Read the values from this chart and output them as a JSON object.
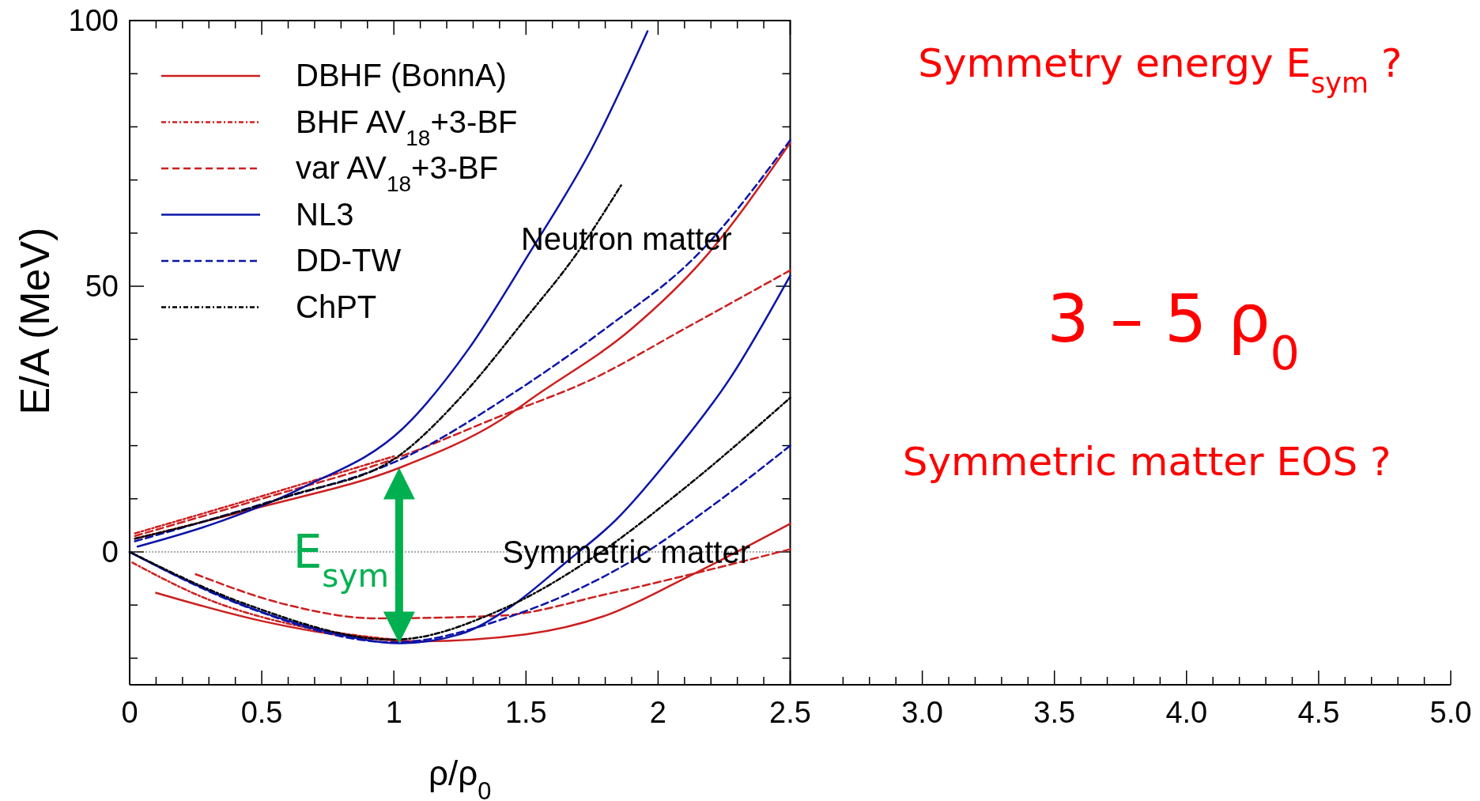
{
  "chart_data": {
    "type": "line",
    "xlabel": "ρ/ρ$_{0}$",
    "ylabel": "E/A  (MeV)",
    "xlim": [
      0,
      5
    ],
    "ylim": [
      -25,
      100
    ],
    "xticks": [
      0,
      {
        "value": 0.1,
        "label": null
      },
      {
        "value": 0.2,
        "label": null
      },
      {
        "value": 0.3,
        "label": null
      },
      {
        "value": 0.4,
        "label": null
      },
      0.5,
      {
        "value": 0.6,
        "label": null
      },
      {
        "value": 0.7,
        "label": null
      },
      {
        "value": 0.8,
        "label": null
      },
      {
        "value": 0.9,
        "label": null
      },
      1,
      {
        "value": 1.1,
        "label": null
      },
      {
        "value": 1.2,
        "label": null
      },
      {
        "value": 1.3,
        "label": null
      },
      {
        "value": 1.4,
        "label": null
      },
      1.5,
      {
        "value": 1.6,
        "label": null
      },
      {
        "value": 1.7,
        "label": null
      },
      {
        "value": 1.8,
        "label": null
      },
      {
        "value": 1.9,
        "label": null
      },
      2,
      {
        "value": 2.1,
        "label": null
      },
      {
        "value": 2.2,
        "label": null
      },
      {
        "value": 2.3,
        "label": null
      },
      {
        "value": 2.4,
        "label": null
      },
      2.5,
      {
        "value": 2.7,
        "label": null
      },
      {
        "value": 2.8,
        "label": null
      },
      {
        "value": 2.9,
        "label": null
      },
      {
        "value": 3,
        "label": "3.0"
      },
      {
        "value": 3.1,
        "label": null
      },
      {
        "value": 3.2,
        "label": null
      },
      {
        "value": 3.3,
        "label": null
      },
      {
        "value": 3.4,
        "label": null
      },
      3.5,
      {
        "value": 3.6,
        "label": null
      },
      {
        "value": 3.7,
        "label": null
      },
      {
        "value": 3.8,
        "label": null
      },
      {
        "value": 3.9,
        "label": null
      },
      {
        "value": 4,
        "label": "4.0"
      },
      {
        "value": 4.1,
        "label": null
      },
      {
        "value": 4.2,
        "label": null
      },
      {
        "value": 4.3,
        "label": null
      },
      {
        "value": 4.4,
        "label": null
      },
      4.5,
      {
        "value": 4.6,
        "label": null
      },
      {
        "value": 4.7,
        "label": null
      },
      {
        "value": 4.8,
        "label": null
      },
      {
        "value": 4.9,
        "label": null
      },
      {
        "value": 5,
        "label": "5.0"
      }
    ],
    "yticks": [
      {
        "value": -20,
        "label": null
      },
      {
        "value": -10,
        "label": null
      },
      0,
      {
        "value": 10,
        "label": null
      },
      {
        "value": 20,
        "label": null
      },
      {
        "value": 30,
        "label": null
      },
      {
        "value": 40,
        "label": null
      },
      50,
      {
        "value": 60,
        "label": null
      },
      {
        "value": 70,
        "label": null
      },
      {
        "value": 80,
        "label": null
      },
      {
        "value": 90,
        "label": null
      },
      100
    ],
    "legend": "top left",
    "series": [
      {
        "name": "DBHF (BonnA)",
        "color": "#cc1f1f",
        "line_style": "solid",
        "x": [
          0.02,
          0.5,
          1.03,
          1.41,
          1.54,
          1.9,
          2.17,
          2.5
        ],
        "values": [
          2.5,
          8.5,
          16,
          25,
          29.5,
          42,
          55,
          77
        ]
      },
      {
        "name": "BHF AV$_{18}$+3-BF",
        "color": "#cc1f1f",
        "line_style": "dotted",
        "x": [
          0.02,
          0.5,
          1.0
        ],
        "values": [
          3.5,
          10.5,
          18
        ]
      },
      {
        "name": "var AV$_{18}$+3-BF",
        "color": "#cc1f1f",
        "line_style": "dashed",
        "x": [
          0.02,
          0.5,
          1.0,
          1.4,
          1.75,
          2.1,
          2.5
        ],
        "values": [
          3,
          10,
          17.5,
          25.5,
          32.5,
          42,
          53
        ]
      },
      {
        "name": "NL3",
        "color": "#0a14a8",
        "line_style": "solid",
        "x": [
          0.03,
          0.3,
          0.65,
          1.05,
          1.28,
          1.51,
          1.75,
          1.96
        ],
        "values": [
          1,
          5,
          12,
          24,
          38,
          56,
          76,
          98
        ]
      },
      {
        "name": "DD-TW",
        "color": "#0a14a8",
        "line_style": "dashed",
        "x": [
          0.02,
          0.5,
          1.05,
          1.44,
          1.8,
          2.15,
          2.5
        ],
        "values": [
          2,
          9,
          18,
          29.5,
          42,
          56,
          77.5
        ]
      },
      {
        "name": "ChPT",
        "color": "#000000",
        "line_style": "dotted",
        "x": [
          0.02,
          0.3,
          0.6,
          1.03,
          1.26,
          1.5,
          1.69,
          1.86
        ],
        "values": [
          2.5,
          6,
          10.5,
          18.5,
          29.5,
          44,
          56,
          69
        ]
      },
      {
        "color": "#cc1f1f",
        "line_style": "solid",
        "x": [
          0.1,
          0.5,
          0.8,
          1.1,
          1.5,
          1.8,
          2.1,
          2.5
        ],
        "values": [
          -7.7,
          -13,
          -15.7,
          -16.8,
          -15.5,
          -12,
          -5,
          5.3
        ]
      },
      {
        "color": "#cc1f1f",
        "line_style": "dotted",
        "x": [
          0.01,
          0.3,
          0.6,
          1.0
        ],
        "values": [
          -2,
          -9,
          -13.5,
          -16.5
        ]
      },
      {
        "color": "#cc1f1f",
        "line_style": "dashed",
        "x": [
          0.25,
          0.6,
          0.93,
          1.4,
          1.8,
          2.1,
          2.5
        ],
        "values": [
          -4.2,
          -10,
          -12.5,
          -12,
          -8,
          -4.5,
          0.5
        ]
      },
      {
        "color": "#0a14a8",
        "line_style": "solid",
        "x": [
          0,
          0.2,
          0.45,
          0.75,
          1.02,
          1.25,
          1.44,
          1.65,
          1.84,
          2.05,
          2.27,
          2.5
        ],
        "values": [
          0,
          -5,
          -10.4,
          -15,
          -17.2,
          -15.5,
          -10.4,
          -2,
          6,
          18,
          32.5,
          52
        ]
      },
      {
        "color": "#0a14a8",
        "line_style": "dashed",
        "x": [
          0,
          0.45,
          1.0,
          1.45,
          1.94,
          2.2,
          2.5
        ],
        "values": [
          0,
          -10.5,
          -17,
          -12,
          -0.5,
          8.5,
          20
        ]
      },
      {
        "color": "#000000",
        "line_style": "dotted",
        "x": [
          0,
          0.45,
          1.0,
          1.4,
          1.77,
          2.1,
          2.5
        ],
        "values": [
          0,
          -10,
          -16.5,
          -11,
          -0.5,
          12,
          29
        ]
      }
    ],
    "ref_lines": [
      {
        "axis": "y",
        "value": 0,
        "color": "#555555",
        "line_style": "dotted"
      }
    ],
    "annotations": [
      "Neutron matter",
      {
        "text": "Symmetric matter",
        "x": 1.88,
        "y": 0
      },
      {
        "text": "E$_{sym}$",
        "x": 0.8,
        "y": 0
      },
      "Symmetry energy E$_{sym}$ ?",
      "3 – 5 ρ$_{0}$",
      "Symmetric matter EOS ?"
    ]
  }
}
